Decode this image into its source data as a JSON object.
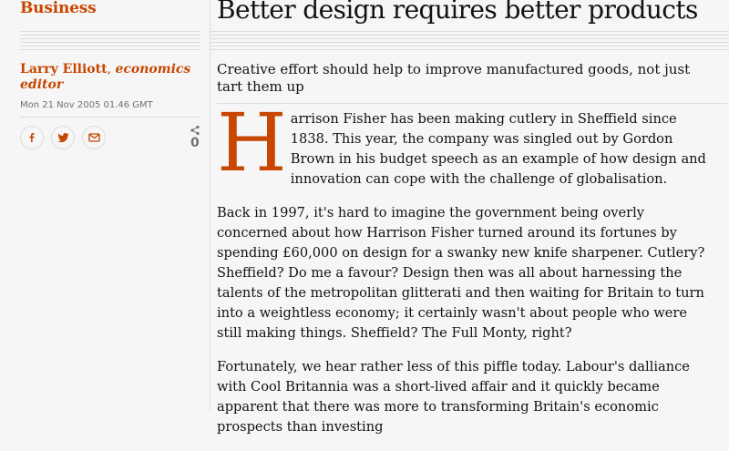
{
  "section": "Business",
  "byline": {
    "author": "Larry Elliott",
    "role": "economics editor"
  },
  "dateline": "Mon 21 Nov 2005 01.46 GMT",
  "share": {
    "count": "0",
    "buttons": [
      "facebook-icon",
      "twitter-icon",
      "email-icon"
    ]
  },
  "headline": "Better design requires better products",
  "standfirst": "Creative effort should help to improve manufactured goods, not just tart them up",
  "body": {
    "dropcap": "H",
    "p1": "arrison Fisher has been making cutlery in Sheffield since 1838. This year, the company was singled out by Gordon Brown in his budget speech as an example of how design and innovation can cope with the challenge of globalisation.",
    "p2": "Back in 1997, it's hard to imagine the government being overly concerned about how Harrison Fisher turned around its fortunes by spending £60,000 on design for a swanky new knife sharpener. Cutlery? Sheffield? Do me a favour? Design then was all about harnessing the talents of the metropolitan glitterati and then waiting for Britain to turn into a weightless economy; it certainly wasn't about people who were still making things. Sheffield? The Full Monty, right?",
    "p3": "Fortunately, we hear rather less of this piffle today. Labour's dalliance with Cool Britannia was a short-lived affair and it quickly became apparent that there was more to transforming Britain's economic prospects than investing"
  },
  "colors": {
    "accent": "#c74600",
    "text": "#121212",
    "muted": "#707070",
    "rule": "#dcdcdc",
    "background": "#f6f6f6"
  }
}
